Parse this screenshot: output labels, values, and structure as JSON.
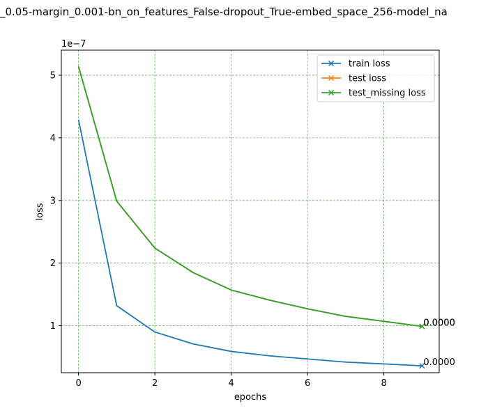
{
  "chart_data": {
    "type": "line",
    "title": "_0.05-margin_0.001-bn_on_features_False-dropout_True-embed_space_256-model_na",
    "xlabel": "epochs",
    "ylabel": "loss",
    "y_offset_label": "1e−7",
    "xlim": [
      -0.45,
      9.45
    ],
    "ylim": [
      2.5e-08,
      5.4e-07
    ],
    "x_ticks": [
      0,
      2,
      4,
      6,
      8
    ],
    "y_ticks": [
      1e-07,
      2e-07,
      3e-07,
      4e-07,
      5e-07
    ],
    "x_tick_labels": [
      "0",
      "2",
      "4",
      "6",
      "8"
    ],
    "y_tick_labels": [
      "1",
      "2",
      "3",
      "4",
      "5"
    ],
    "grid": true,
    "legend_position": "top-right",
    "x": [
      0,
      1,
      2,
      3,
      4,
      5,
      6,
      7,
      8,
      9
    ],
    "series": [
      {
        "name": "train loss",
        "color": "#1f77b4",
        "values": [
          4.29e-07,
          1.32e-07,
          9e-08,
          7.1e-08,
          5.9e-08,
          5.2e-08,
          4.7e-08,
          4.2e-08,
          3.9e-08,
          3.6e-08
        ],
        "end_label": "0.0000"
      },
      {
        "name": "test loss",
        "color": "#ff7f0e",
        "values": [
          5.14e-07,
          2.99e-07,
          2.24e-07,
          1.85e-07,
          1.57e-07,
          1.41e-07,
          1.27e-07,
          1.15e-07,
          1.07e-07,
          9.9e-08
        ],
        "end_label": "0.0000"
      },
      {
        "name": "test_missing loss",
        "color": "#2ca02c",
        "values": [
          5.14e-07,
          2.99e-07,
          2.24e-07,
          1.85e-07,
          1.57e-07,
          1.41e-07,
          1.27e-07,
          1.15e-07,
          1.07e-07,
          9.9e-08
        ],
        "end_label": "0.0000"
      }
    ]
  }
}
